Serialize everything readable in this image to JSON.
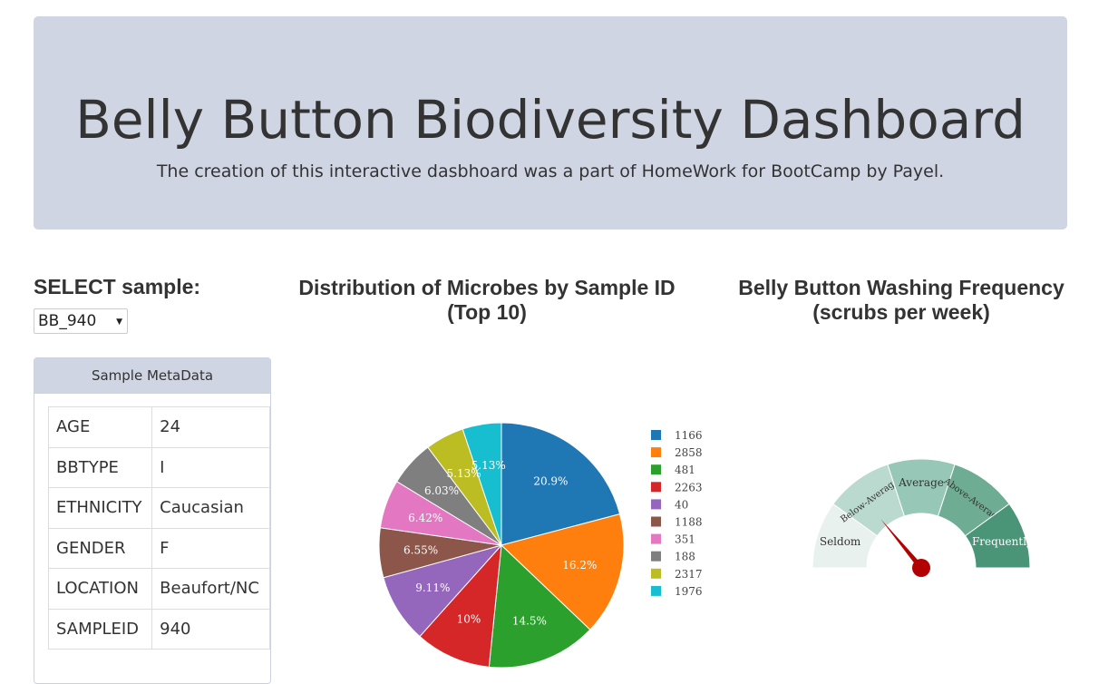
{
  "header": {
    "title": "Belly Button Biodiversity Dashboard",
    "subtitle": "The creation of this interactive dasbhoard was a part of HomeWork for BootCamp by Payel."
  },
  "selector": {
    "label": "SELECT sample:",
    "value": "BB_940"
  },
  "metadata": {
    "heading": "Sample MetaData",
    "rows": [
      {
        "key": "AGE",
        "value": "24"
      },
      {
        "key": "BBTYPE",
        "value": "I"
      },
      {
        "key": "ETHNICITY",
        "value": "Caucasian"
      },
      {
        "key": "GENDER",
        "value": "F"
      },
      {
        "key": "LOCATION",
        "value": "Beaufort/NC"
      },
      {
        "key": "SAMPLEID",
        "value": "940"
      }
    ]
  },
  "pie": {
    "title_line1": "Distribution of Microbes by Sample ID",
    "title_line2": "(Top 10)"
  },
  "gauge": {
    "title_line1": "Belly Button Washing Frequency",
    "title_line2": "(scrubs per week)"
  },
  "colors": {
    "series": [
      "#1f77b4",
      "#ff7f0e",
      "#2ca02c",
      "#d62728",
      "#9467bd",
      "#8c564b",
      "#e377c2",
      "#7f7f7f",
      "#bcbd22",
      "#17becf"
    ],
    "gauge_bands": [
      "#e9f1ee",
      "#bad9cf",
      "#97c7b6",
      "#6eac94",
      "#4a9478"
    ],
    "needle": "#b30000"
  },
  "chart_data": [
    {
      "type": "pie",
      "title": "Distribution of Microbes by Sample ID (Top 10)",
      "labels": [
        "1166",
        "2858",
        "481",
        "2263",
        "40",
        "1188",
        "351",
        "188",
        "2317",
        "1976"
      ],
      "values": [
        20.9,
        16.2,
        14.5,
        10,
        9.11,
        6.55,
        6.42,
        6.03,
        5.13,
        5.13
      ],
      "value_labels": [
        "20.9%",
        "16.2%",
        "14.5%",
        "10%",
        "9.11%",
        "6.55%",
        "6.42%",
        "6.03%",
        "5.13%",
        "5.13%"
      ],
      "legend": "right"
    },
    {
      "type": "gauge",
      "title": "Belly Button Washing Frequency (scrubs per week)",
      "categories": [
        "Seldom",
        "Below-Average",
        "Average",
        "Above-Average",
        "Frequently"
      ],
      "needle_fraction": 0.2
    }
  ]
}
